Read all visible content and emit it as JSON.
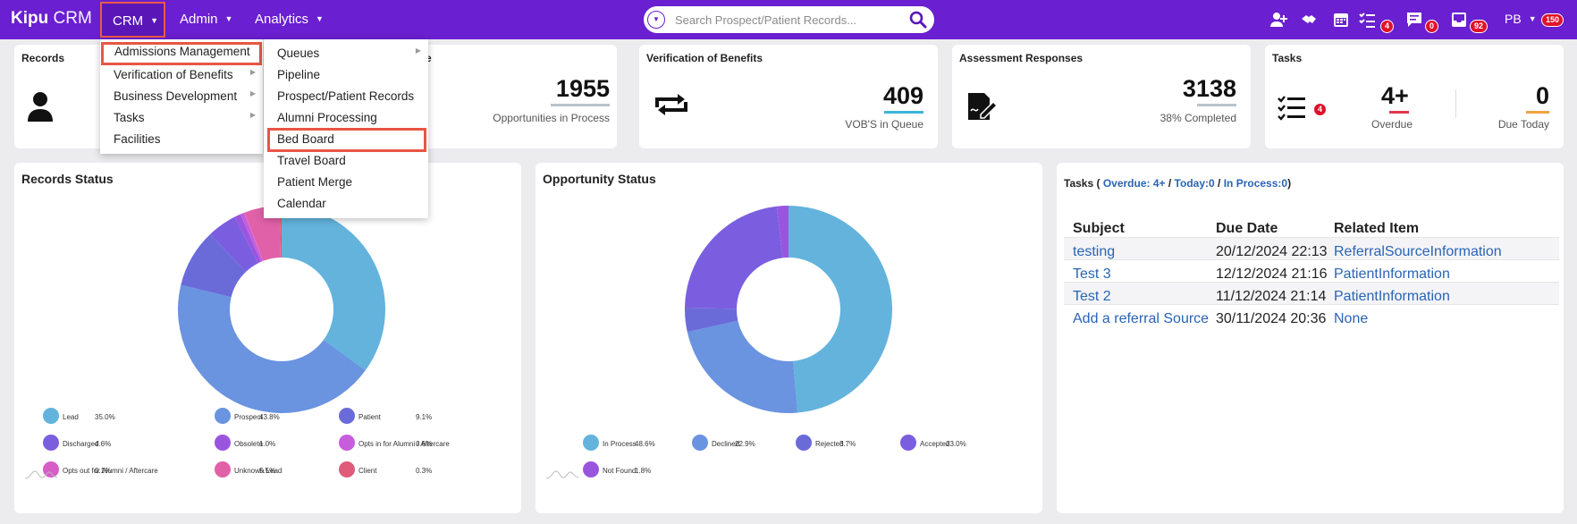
{
  "header": {
    "logo_brand": "Kipu",
    "logo_product": "CRM",
    "nav": {
      "crm": "CRM",
      "admin": "Admin",
      "analytics": "Analytics"
    },
    "search_placeholder": "Search Prospect/Patient Records...",
    "badges": {
      "tasks": "4",
      "messages": "0",
      "inbox": "92",
      "profile": "150"
    },
    "user_initials": "PB"
  },
  "cards": {
    "records": {
      "title": "Records"
    },
    "opportunities": {
      "title_tail": "e",
      "value": "1955",
      "label": "Opportunities in Process"
    },
    "vob": {
      "title": "Verification of Benefits",
      "value": "409",
      "label": "VOB'S in Queue"
    },
    "assessment": {
      "title": "Assessment Responses",
      "value": "3138",
      "label": "38% Completed"
    },
    "tasks": {
      "title": "Tasks",
      "badge": "4",
      "overdue_value": "4+",
      "overdue_label": "Overdue",
      "due_value": "0",
      "due_label": "Due Today"
    }
  },
  "crm_menu": [
    {
      "label": "Admissions Management",
      "has_sub": false
    },
    {
      "label": "Verification of Benefits",
      "has_sub": true
    },
    {
      "label": "Business Development",
      "has_sub": true
    },
    {
      "label": "Tasks",
      "has_sub": true
    },
    {
      "label": "Facilities",
      "has_sub": false
    }
  ],
  "admissions_submenu": [
    {
      "label": "Queues",
      "has_sub": true
    },
    {
      "label": "Pipeline",
      "has_sub": false
    },
    {
      "label": "Prospect/Patient Records",
      "has_sub": false
    },
    {
      "label": "Alumni Processing",
      "has_sub": false
    },
    {
      "label": "Bed Board",
      "has_sub": false
    },
    {
      "label": "Travel Board",
      "has_sub": false
    },
    {
      "label": "Patient Merge",
      "has_sub": false
    },
    {
      "label": "Calendar",
      "has_sub": false
    }
  ],
  "records_status": {
    "title": "Records Status",
    "legend": [
      {
        "name": "Lead",
        "pct": "35.0%"
      },
      {
        "name": "Prospect",
        "pct": "43.8%"
      },
      {
        "name": "Patient",
        "pct": "9.1%"
      },
      {
        "name": "Discharged",
        "pct": "4.6%"
      },
      {
        "name": "Obsolete",
        "pct": "1.0%"
      },
      {
        "name": "Opts in for Alumni / Aftercare",
        "pct": "0.6%"
      },
      {
        "name": "Opts out for Alumni / Aftercare",
        "pct": "0.1%"
      },
      {
        "name": "Unknown Lead",
        "pct": "5.5%"
      },
      {
        "name": "Client",
        "pct": "0.3%"
      }
    ]
  },
  "opportunity_status": {
    "title": "Opportunity Status",
    "legend": [
      {
        "name": "In Process",
        "pct": "48.6%"
      },
      {
        "name": "Declined",
        "pct": "22.9%"
      },
      {
        "name": "Rejected",
        "pct": "3.7%"
      },
      {
        "name": "Accepted",
        "pct": "23.0%"
      },
      {
        "name": "Not Found",
        "pct": "1.8%"
      }
    ]
  },
  "chart_data": [
    {
      "type": "pie",
      "title": "Records Status",
      "categories": [
        "Lead",
        "Prospect",
        "Patient",
        "Discharged",
        "Obsolete",
        "Opts in for Alumni / Aftercare",
        "Opts out for Alumni / Aftercare",
        "Unknown Lead",
        "Client"
      ],
      "values": [
        35.0,
        43.8,
        9.1,
        4.6,
        1.0,
        0.6,
        0.1,
        5.5,
        0.3
      ],
      "colors": [
        "#63b3dd",
        "#6a93e0",
        "#6a6bd9",
        "#7b5ee0",
        "#9a55df",
        "#c75ddc",
        "#d65ec6",
        "#e061a8",
        "#e05a7a"
      ]
    },
    {
      "type": "pie",
      "title": "Opportunity Status",
      "categories": [
        "In Process",
        "Declined",
        "Rejected",
        "Accepted",
        "Not Found"
      ],
      "values": [
        48.6,
        22.9,
        3.7,
        23.0,
        1.8
      ],
      "colors": [
        "#63b3dd",
        "#6a93e0",
        "#6a6bd9",
        "#7b5ee0",
        "#9a55df"
      ]
    }
  ],
  "tasks_panel": {
    "title_prefix": "Tasks (",
    "overdue": "Overdue: 4+",
    "sep1": "/",
    "today": "Today:0",
    "sep2": "/",
    "in_process": "In Process:0",
    "title_suffix": ")",
    "columns": [
      "Subject",
      "Due Date",
      "Related Item"
    ],
    "rows": [
      {
        "subject": "testing",
        "due": "20/12/2024 22:13",
        "related": "ReferralSourceInformation"
      },
      {
        "subject": "Test 3",
        "due": "12/12/2024 21:16",
        "related": "PatientInformation"
      },
      {
        "subject": "Test 2",
        "due": "11/12/2024 21:14",
        "related": "PatientInformation"
      },
      {
        "subject": "Add a referral Source",
        "due": "30/11/2024 20:36",
        "related": "None"
      }
    ]
  }
}
